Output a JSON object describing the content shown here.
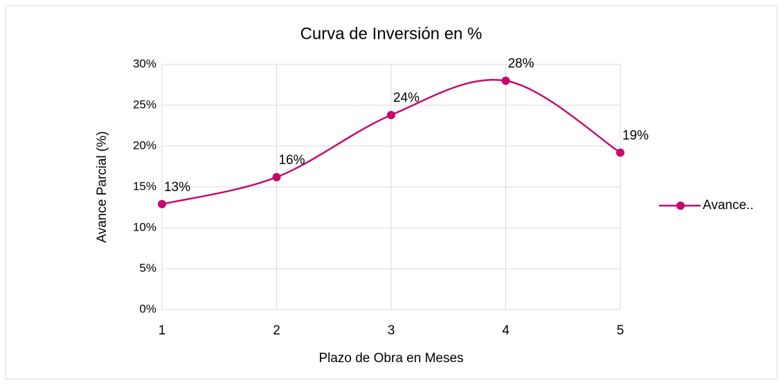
{
  "chart_data": {
    "type": "line",
    "title": "Curva de Inversión en %",
    "x_label": "Plazo de Obra en Meses",
    "y_label": "Avance Parcial (%)",
    "x": [
      1,
      2,
      3,
      4,
      5
    ],
    "series": [
      {
        "name": "Avance..",
        "color": "#c8076e",
        "values": [
          12.9,
          16.2,
          23.8,
          28.0,
          19.2
        ],
        "value_labels": [
          "13%",
          "16%",
          "24%",
          "28%",
          "19%"
        ]
      }
    ],
    "xlim": [
      1,
      5
    ],
    "xticks": [
      1,
      2,
      3,
      4,
      5
    ],
    "ylim": [
      0,
      30
    ],
    "yticks": [
      {
        "value": 0,
        "label": "0%"
      },
      {
        "value": 5,
        "label": "5%"
      },
      {
        "value": 10,
        "label": "10%"
      },
      {
        "value": 15,
        "label": "15%"
      },
      {
        "value": 20,
        "label": "20%"
      },
      {
        "value": 25,
        "label": "25%"
      },
      {
        "value": 30,
        "label": "30%"
      }
    ],
    "grid": true,
    "smooth": true,
    "legend": "right"
  }
}
